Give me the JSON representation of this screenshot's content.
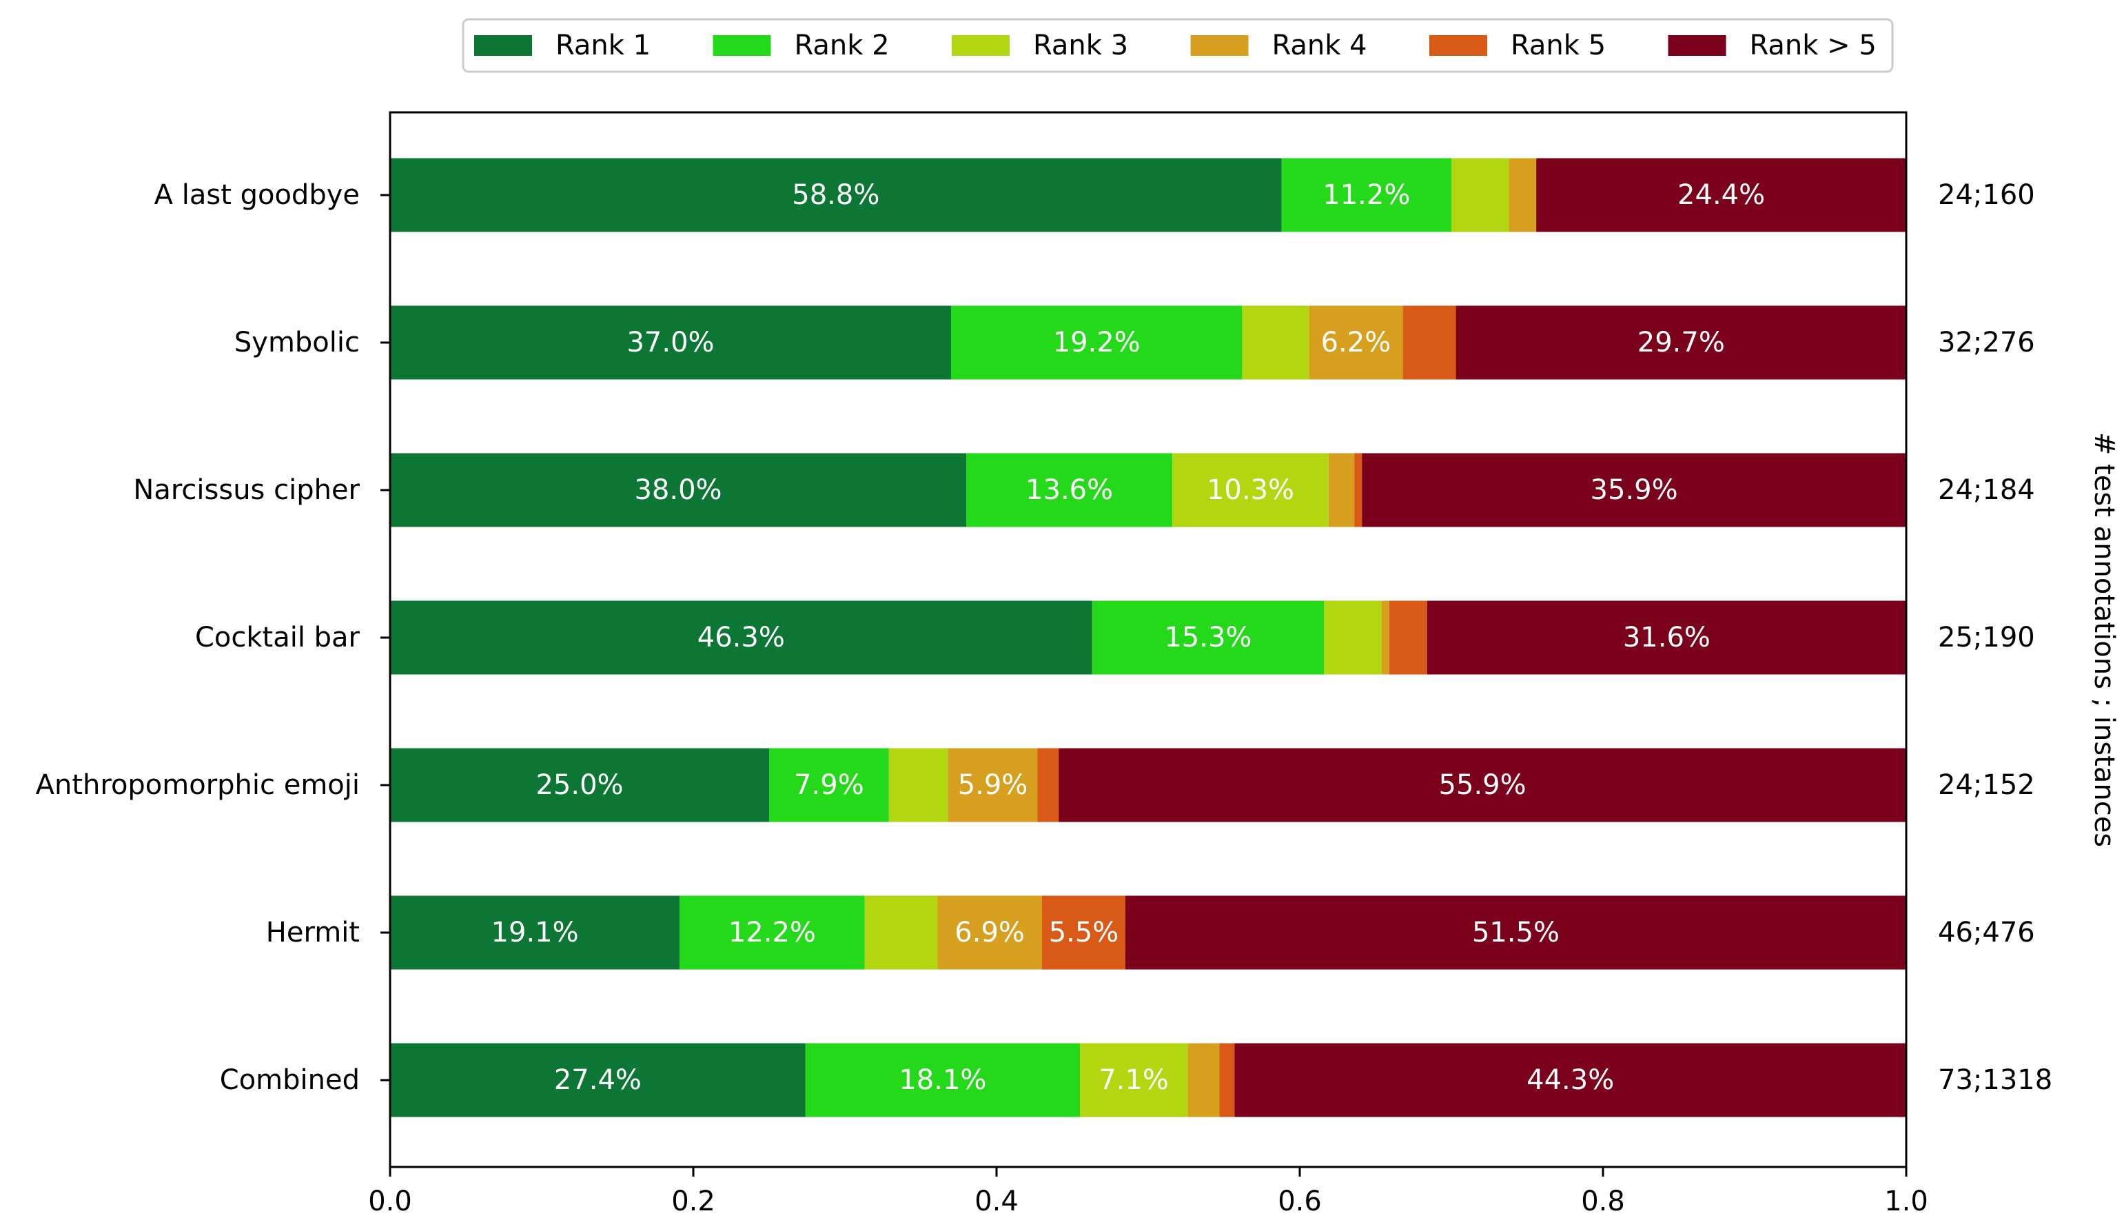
{
  "chart_data": {
    "type": "bar",
    "orientation": "horizontal",
    "stacked": true,
    "categories": [
      "A last goodbye",
      "Symbolic",
      "Narcissus cipher",
      "Cocktail bar",
      "Anthropomorphic emoji",
      "Hermit",
      "Combined"
    ],
    "right_labels": [
      "24;160",
      "32;276",
      "24;184",
      "25;190",
      "24;152",
      "46;476",
      "73;1318"
    ],
    "series": [
      {
        "name": "Rank 1",
        "color": "#0c7734",
        "values": [
          0.588,
          0.37,
          0.38,
          0.463,
          0.25,
          0.191,
          0.274
        ],
        "labels": [
          "58.8%",
          "37.0%",
          "38.0%",
          "46.3%",
          "25.0%",
          "19.1%",
          "27.4%"
        ]
      },
      {
        "name": "Rank 2",
        "color": "#24d81a",
        "values": [
          0.112,
          0.192,
          0.136,
          0.153,
          0.079,
          0.122,
          0.181
        ],
        "labels": [
          "11.2%",
          "19.2%",
          "13.6%",
          "15.3%",
          "7.9%",
          "12.2%",
          "18.1%"
        ]
      },
      {
        "name": "Rank 3",
        "color": "#b2d610",
        "values": [
          0.038,
          0.044,
          0.103,
          0.038,
          0.039,
          0.048,
          0.071
        ],
        "labels": [
          "",
          "",
          "10.3%",
          "",
          "",
          "",
          "7.1%"
        ]
      },
      {
        "name": "Rank 4",
        "color": "#d6a01e",
        "values": [
          0.018,
          0.062,
          0.017,
          0.005,
          0.059,
          0.069,
          0.021
        ],
        "labels": [
          "",
          "6.2%",
          "",
          "",
          "5.9%",
          "6.9%",
          ""
        ]
      },
      {
        "name": "Rank 5",
        "color": "#d95a16",
        "values": [
          0.0,
          0.035,
          0.005,
          0.025,
          0.014,
          0.055,
          0.01
        ],
        "labels": [
          "",
          "",
          "",
          "",
          "",
          "5.5%",
          ""
        ]
      },
      {
        "name": "Rank > 5",
        "color": "#7a001c",
        "values": [
          0.244,
          0.297,
          0.359,
          0.316,
          0.559,
          0.515,
          0.443
        ],
        "labels": [
          "24.4%",
          "29.7%",
          "35.9%",
          "31.6%",
          "55.9%",
          "51.5%",
          "44.3%"
        ]
      }
    ],
    "xlim": [
      0.0,
      1.0
    ],
    "xticks": [
      "0.0",
      "0.2",
      "0.4",
      "0.6",
      "0.8",
      "1.0"
    ],
    "xlabel": "",
    "ylabel": "",
    "right_axis_label": "# test annotations ; instances",
    "legend_position": "top-center",
    "grid": false
  }
}
